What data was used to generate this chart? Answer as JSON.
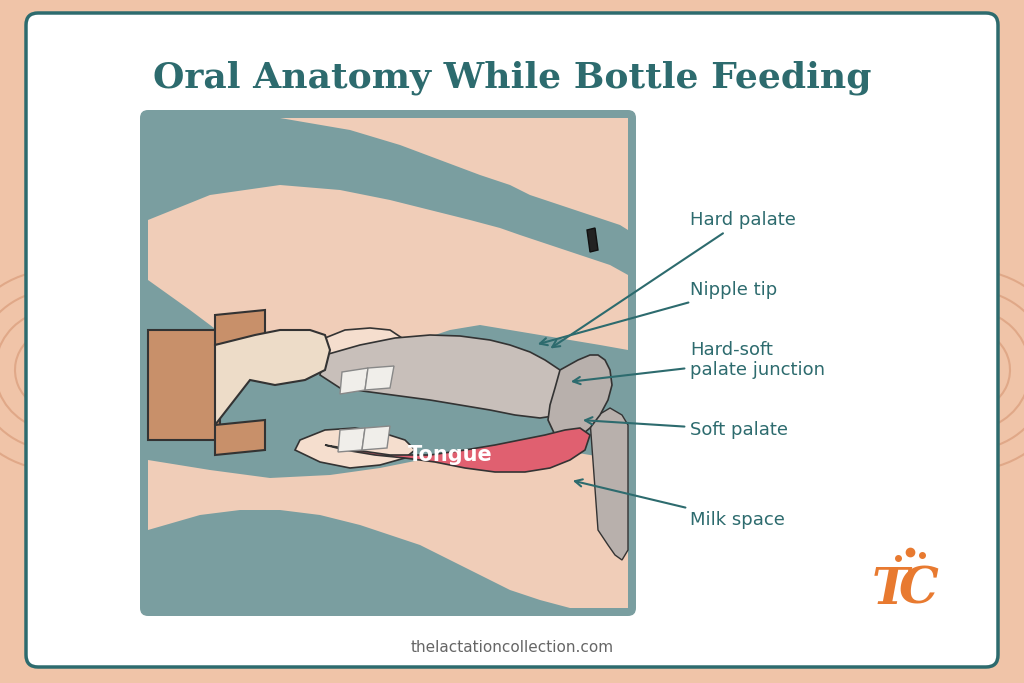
{
  "title": "Oral Anatomy While Bottle Feeding",
  "title_color": "#2d6b6e",
  "title_fontsize": 26,
  "bg_outer": "#f0c4a8",
  "bg_card": "#ffffff",
  "bg_diagram": "#7a9ea0",
  "skin_color": "#f0cdb8",
  "skin_light": "#f5dece",
  "tongue_color": "#e06070",
  "nipple_body_color": "#c8906a",
  "nipple_tip_color": "#eddcc8",
  "hard_palate_color": "#c8bfba",
  "soft_palate_color": "#b8b0ac",
  "teeth_color": "#f0eeea",
  "label_color": "#2d6b6e",
  "arrow_color": "#2d6b6e",
  "label_fontsize": 13,
  "tongue_label": "Tongue",
  "tongue_label_color": "#ffffff",
  "watermark": "thelactationcollection.com",
  "card_border_color": "#2d6b6e",
  "outline_color": "#333333",
  "deco_color": "#e0a888"
}
